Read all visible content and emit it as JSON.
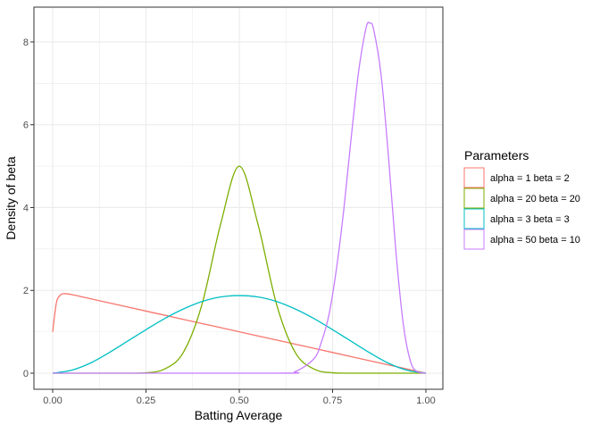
{
  "chart_data": {
    "type": "line",
    "xlabel": "Batting Average",
    "ylabel": "Density of beta",
    "xlim": [
      0,
      1
    ],
    "ylim": [
      0,
      8.45
    ],
    "x_ticks": [
      {
        "value": 0,
        "label": "0.00"
      },
      {
        "value": 0.25,
        "label": "0.25"
      },
      {
        "value": 0.5,
        "label": "0.50"
      },
      {
        "value": 0.75,
        "label": "0.75"
      },
      {
        "value": 1,
        "label": "1.00"
      }
    ],
    "y_ticks": [
      {
        "value": 0,
        "label": "0"
      },
      {
        "value": 2,
        "label": "2"
      },
      {
        "value": 4,
        "label": "4"
      },
      {
        "value": 6,
        "label": "6"
      },
      {
        "value": 8,
        "label": "8"
      }
    ],
    "grid": true,
    "legend": {
      "title": "Parameters",
      "position": "right"
    },
    "series": [
      {
        "name": "alpha = 1 beta = 2",
        "color": "#F8766D",
        "x": [
          0,
          0.01,
          0.02,
          0.03,
          0.05,
          0.1,
          0.2,
          0.3,
          0.4,
          0.5,
          0.6,
          0.7,
          0.8,
          0.9,
          1.0
        ],
        "y": [
          1.0,
          1.7,
          1.88,
          1.92,
          1.9,
          1.8,
          1.6,
          1.4,
          1.2,
          1.0,
          0.8,
          0.6,
          0.4,
          0.2,
          0.0
        ]
      },
      {
        "name": "alpha = 20 beta = 20",
        "color": "#7CAE00",
        "x": [
          0,
          0.2,
          0.25,
          0.3,
          0.35,
          0.4,
          0.45,
          0.5,
          0.55,
          0.6,
          0.65,
          0.7,
          0.75,
          0.8,
          1.0
        ],
        "y": [
          0.0,
          0.0,
          0.01,
          0.1,
          0.5,
          1.66,
          3.6,
          5.0,
          3.6,
          1.66,
          0.5,
          0.1,
          0.01,
          0.0,
          0.0
        ]
      },
      {
        "name": "alpha = 3 beta = 3",
        "color": "#00BFC4",
        "x": [
          0,
          0.05,
          0.1,
          0.15,
          0.2,
          0.25,
          0.3,
          0.35,
          0.4,
          0.45,
          0.5,
          0.55,
          0.6,
          0.65,
          0.7,
          0.75,
          0.8,
          0.85,
          0.9,
          0.95,
          1.0
        ],
        "y": [
          0.0,
          0.07,
          0.24,
          0.49,
          0.77,
          1.05,
          1.32,
          1.55,
          1.73,
          1.84,
          1.875,
          1.84,
          1.73,
          1.55,
          1.32,
          1.05,
          0.77,
          0.49,
          0.24,
          0.07,
          0.0
        ]
      },
      {
        "name": "alpha = 50 beta = 10",
        "color": "#C77CFF",
        "x": [
          0,
          0.6,
          0.65,
          0.7,
          0.72,
          0.74,
          0.76,
          0.78,
          0.8,
          0.82,
          0.84,
          0.85,
          0.86,
          0.88,
          0.9,
          0.92,
          0.94,
          0.96,
          0.98,
          1.0
        ],
        "y": [
          0.0,
          0.0,
          0.04,
          0.35,
          0.75,
          1.4,
          2.5,
          3.95,
          5.7,
          7.3,
          8.35,
          8.45,
          8.3,
          7.2,
          5.2,
          2.9,
          1.15,
          0.25,
          0.02,
          0.0
        ]
      }
    ]
  }
}
